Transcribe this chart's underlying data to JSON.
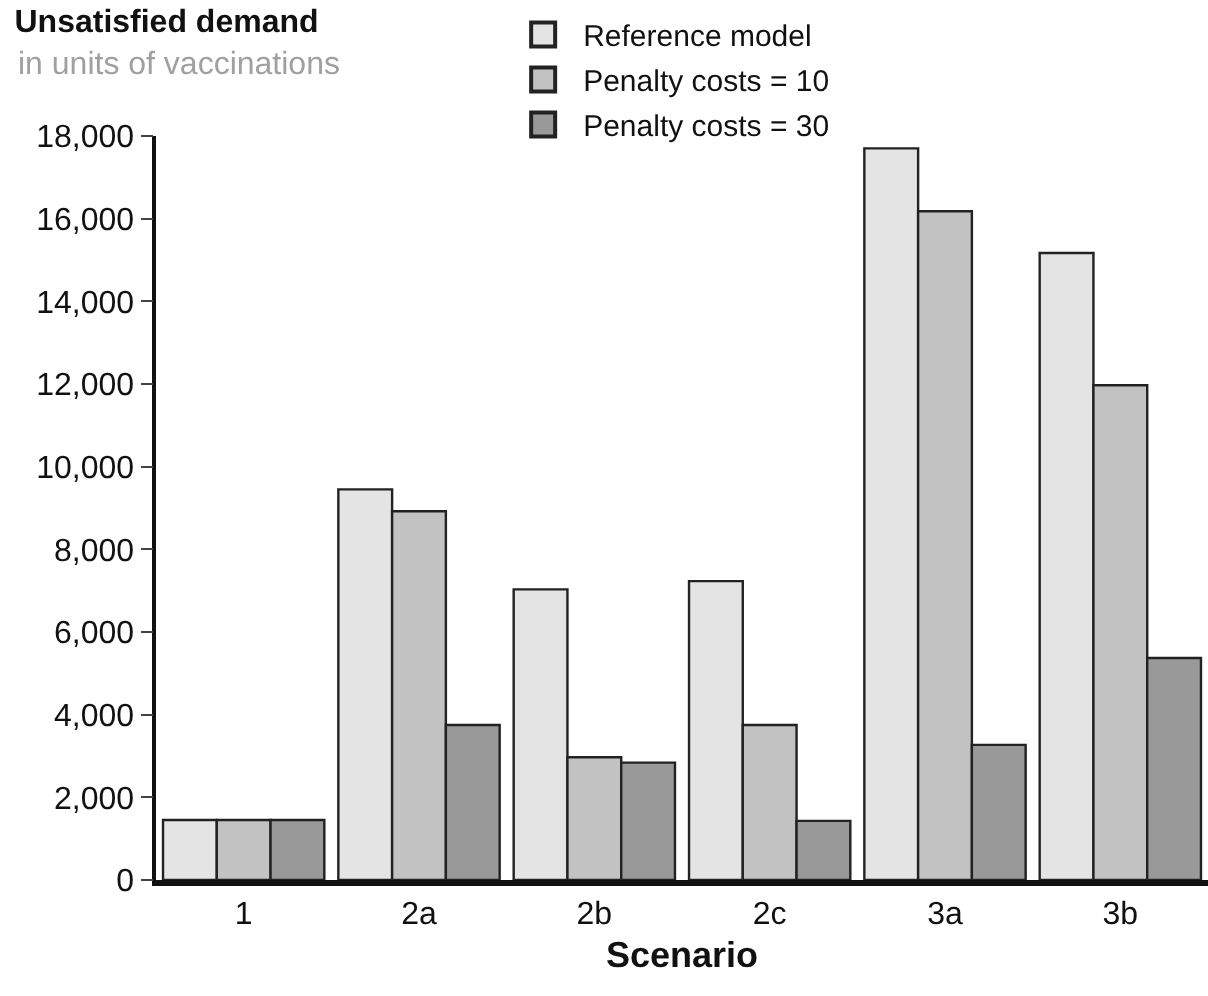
{
  "chart_data": {
    "type": "bar",
    "title": "Unsatisfied demand",
    "subtitle": "in units of vaccinations",
    "xlabel": "Scenario",
    "categories": [
      "1",
      "2a",
      "2b",
      "2c",
      "3a",
      "3b"
    ],
    "series": [
      {
        "name": "Reference model",
        "color": "#e4e4e4",
        "values": [
          1450,
          9450,
          7030,
          7230,
          17700,
          15170
        ]
      },
      {
        "name": "Penalty costs = 10",
        "color": "#c2c2c2",
        "values": [
          1450,
          8920,
          2970,
          3750,
          16180,
          11970
        ]
      },
      {
        "name": "Penalty costs = 30",
        "color": "#999999",
        "values": [
          1450,
          3750,
          2840,
          1430,
          3270,
          5370
        ]
      }
    ],
    "ylim": [
      0,
      18000
    ],
    "yticks": [
      {
        "value": 0,
        "label": "0"
      },
      {
        "value": 2000,
        "label": "2,000"
      },
      {
        "value": 4000,
        "label": "4,000"
      },
      {
        "value": 6000,
        "label": "6,000"
      },
      {
        "value": 8000,
        "label": "8,000"
      },
      {
        "value": 10000,
        "label": "10,000"
      },
      {
        "value": 12000,
        "label": "12,000"
      },
      {
        "value": 14000,
        "label": "14,000"
      },
      {
        "value": 16000,
        "label": "16,000"
      },
      {
        "value": 18000,
        "label": "18,000"
      }
    ],
    "legend": "top"
  }
}
